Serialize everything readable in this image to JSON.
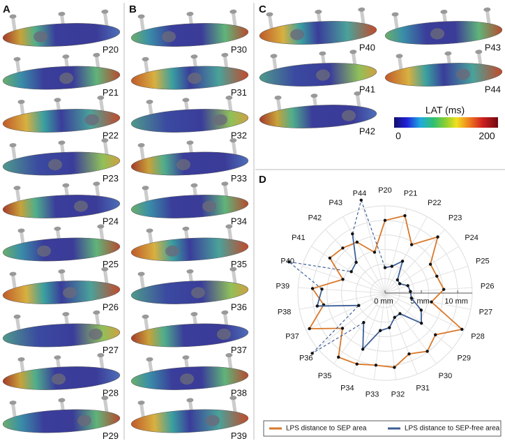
{
  "panels": [
    {
      "letter": "A",
      "labels": [
        "P20",
        "P21",
        "P22",
        "P23",
        "P24",
        "P25",
        "P26",
        "P27",
        "P28",
        "P29"
      ]
    },
    {
      "letter": "B",
      "labels": [
        "P30",
        "P31",
        "P32",
        "P33",
        "P34",
        "P35",
        "P36",
        "P37",
        "P38",
        "P39"
      ]
    },
    {
      "letter": "C",
      "labels": [
        "P40",
        "P41",
        "P42",
        "P43",
        "P44"
      ]
    }
  ],
  "colorbar": {
    "title": "LAT (ms)",
    "ticks": [
      0,
      200
    ]
  },
  "chart_data": {
    "type": "radar",
    "letter": "D",
    "categories": [
      "P20",
      "P21",
      "P22",
      "P23",
      "P24",
      "P25",
      "P26",
      "P27",
      "P28",
      "P29",
      "P30",
      "P31",
      "P32",
      "P33",
      "P34",
      "P35",
      "P36",
      "P37",
      "P38",
      "P39",
      "P40",
      "P41",
      "P42",
      "P43",
      "P44"
    ],
    "series": [
      {
        "name": "LPS distance to SEP area",
        "color": "#d9782a",
        "values": [
          10,
          11,
          7.6,
          10.6,
          7.4,
          7.5,
          8.1,
          6.5,
          11.7,
          9,
          9.9,
          9,
          10.3,
          10,
          10.5,
          10.9,
          7.6,
          11.5,
          8.6,
          10,
          6.1,
          9,
          8.5,
          8,
          5.8
        ]
      },
      {
        "name": "LPS distance to SEP-free area",
        "color": "#3d5f96",
        "values": [
          3.5,
          3.8,
          5,
          2.5,
          2.4,
          3.3,
          3.5,
          3.7,
          5.5,
          6.5,
          3.5,
          3.6,
          4.8,
          5.2,
          8.3,
          5,
          13,
          4,
          9.5,
          8.7,
          13.9,
          5.5,
          5.8,
          9.3,
          13.2
        ]
      }
    ],
    "rlim": [
      0,
      12
    ],
    "rticks": [
      {
        "value": 0,
        "label": "0 mm"
      },
      {
        "value": 5,
        "label": "5 mm"
      },
      {
        "value": 10,
        "label": "10 mm"
      }
    ],
    "rgrid": [
      2,
      4,
      6,
      8,
      10,
      12
    ],
    "legend": "bottom"
  }
}
